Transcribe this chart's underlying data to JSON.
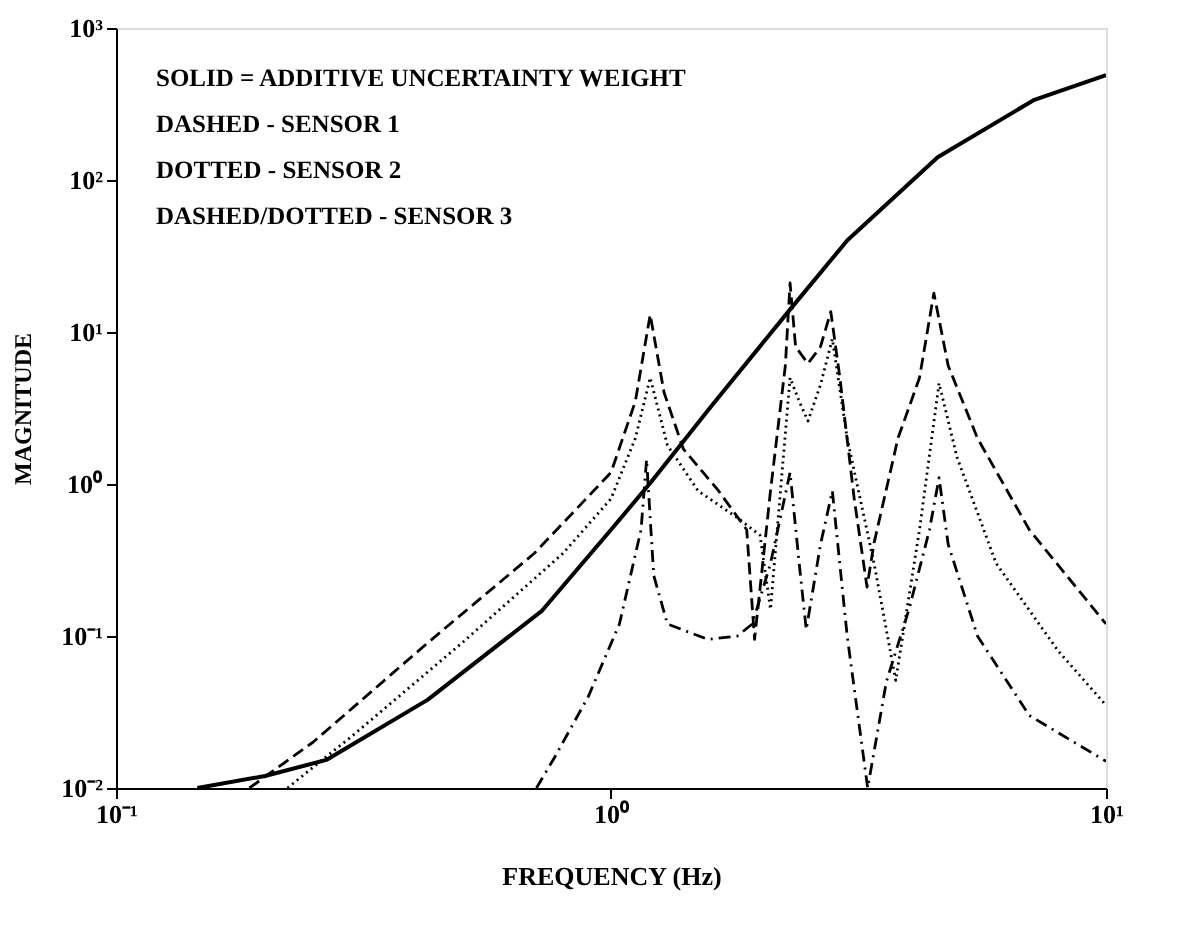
{
  "chart_data": {
    "type": "line",
    "xlabel": "FREQUENCY  (Hz)",
    "ylabel": "MAGNITUDE",
    "log": "xy",
    "grid": false,
    "marker": "none",
    "xlim": [
      0.1,
      10
    ],
    "ylim": [
      0.01,
      1000
    ],
    "xticks": [
      {
        "value": 0.1,
        "label": "10⁻¹"
      },
      {
        "value": 1,
        "label": "10⁰"
      },
      {
        "value": 10,
        "label": "10¹"
      }
    ],
    "yticks": [
      {
        "value": 0.01,
        "label": "10⁻²"
      },
      {
        "value": 0.1,
        "label": "10⁻¹"
      },
      {
        "value": 1,
        "label": "10⁰"
      },
      {
        "value": 10,
        "label": "10¹"
      },
      {
        "value": 100,
        "label": "10²"
      },
      {
        "value": 1000,
        "label": "10³"
      }
    ],
    "annotations": [
      "SOLID = ADDITIVE UNCERTAINTY WEIGHT",
      "DASHED - SENSOR 1",
      "DOTTED - SENSOR 2",
      "DASHED/DOTTED - SENSOR 3"
    ],
    "series": [
      {
        "color": "#000000",
        "line_style": "solid",
        "x": [
          0.146,
          0.2,
          0.266,
          0.426,
          0.726,
          1.0,
          1.205,
          1.6,
          2.31,
          3.0,
          4.57,
          7.14,
          10
        ],
        "values": [
          0.01,
          0.012,
          0.0153,
          0.038,
          0.147,
          0.5,
          1.03,
          3.3,
          14.3,
          40,
          141,
          335,
          490
        ]
      },
      {
        "color": "#000000",
        "line_style": "dashed",
        "x": [
          0.186,
          0.25,
          0.426,
          0.7,
          1.0,
          1.12,
          1.2,
          1.28,
          1.4,
          1.65,
          1.88,
          1.95,
          2.1,
          2.25,
          2.3,
          2.36,
          2.5,
          2.65,
          2.78,
          2.9,
          3.1,
          3.29,
          3.4,
          3.8,
          4.2,
          4.49,
          4.8,
          5.5,
          7,
          10
        ],
        "values": [
          0.01,
          0.02,
          0.09,
          0.35,
          1.19,
          3.5,
          13,
          4,
          1.7,
          0.9,
          0.5,
          0.095,
          0.9,
          6,
          21,
          8,
          6.2,
          8,
          13.6,
          5,
          0.8,
          0.21,
          0.41,
          2,
          5,
          18,
          6,
          2,
          0.5,
          0.12
        ]
      },
      {
        "color": "#000000",
        "line_style": "dotted",
        "x": [
          0.222,
          0.3,
          0.5,
          0.8,
          1.0,
          1.12,
          1.2,
          1.3,
          1.5,
          1.8,
          2.0,
          2.1,
          2.3,
          2.4,
          2.5,
          2.65,
          2.8,
          3.0,
          3.4,
          3.76,
          4.2,
          4.6,
          5,
          6,
          8,
          10
        ],
        "values": [
          0.01,
          0.022,
          0.09,
          0.35,
          0.8,
          2,
          5,
          1.8,
          0.9,
          0.6,
          0.46,
          0.15,
          5,
          3.5,
          2.6,
          4.5,
          9,
          2,
          0.3,
          0.051,
          0.5,
          4.6,
          1.5,
          0.3,
          0.08,
          0.035
        ]
      },
      {
        "color": "#000000",
        "line_style": "dashdot",
        "x": [
          0.707,
          0.77,
          0.9,
          1.04,
          1.15,
          1.18,
          1.22,
          1.3,
          1.57,
          1.8,
          1.93,
          2.1,
          2.3,
          2.4,
          2.48,
          2.65,
          2.8,
          3.0,
          3.3,
          3.6,
          4.0,
          4.4,
          4.6,
          4.8,
          5.5,
          7,
          10
        ],
        "values": [
          0.01,
          0.016,
          0.04,
          0.12,
          0.5,
          1.45,
          0.25,
          0.12,
          0.095,
          0.1,
          0.12,
          0.3,
          1.19,
          0.3,
          0.11,
          0.4,
          0.9,
          0.1,
          0.01,
          0.05,
          0.15,
          0.5,
          1.1,
          0.4,
          0.1,
          0.03,
          0.015
        ]
      }
    ]
  }
}
